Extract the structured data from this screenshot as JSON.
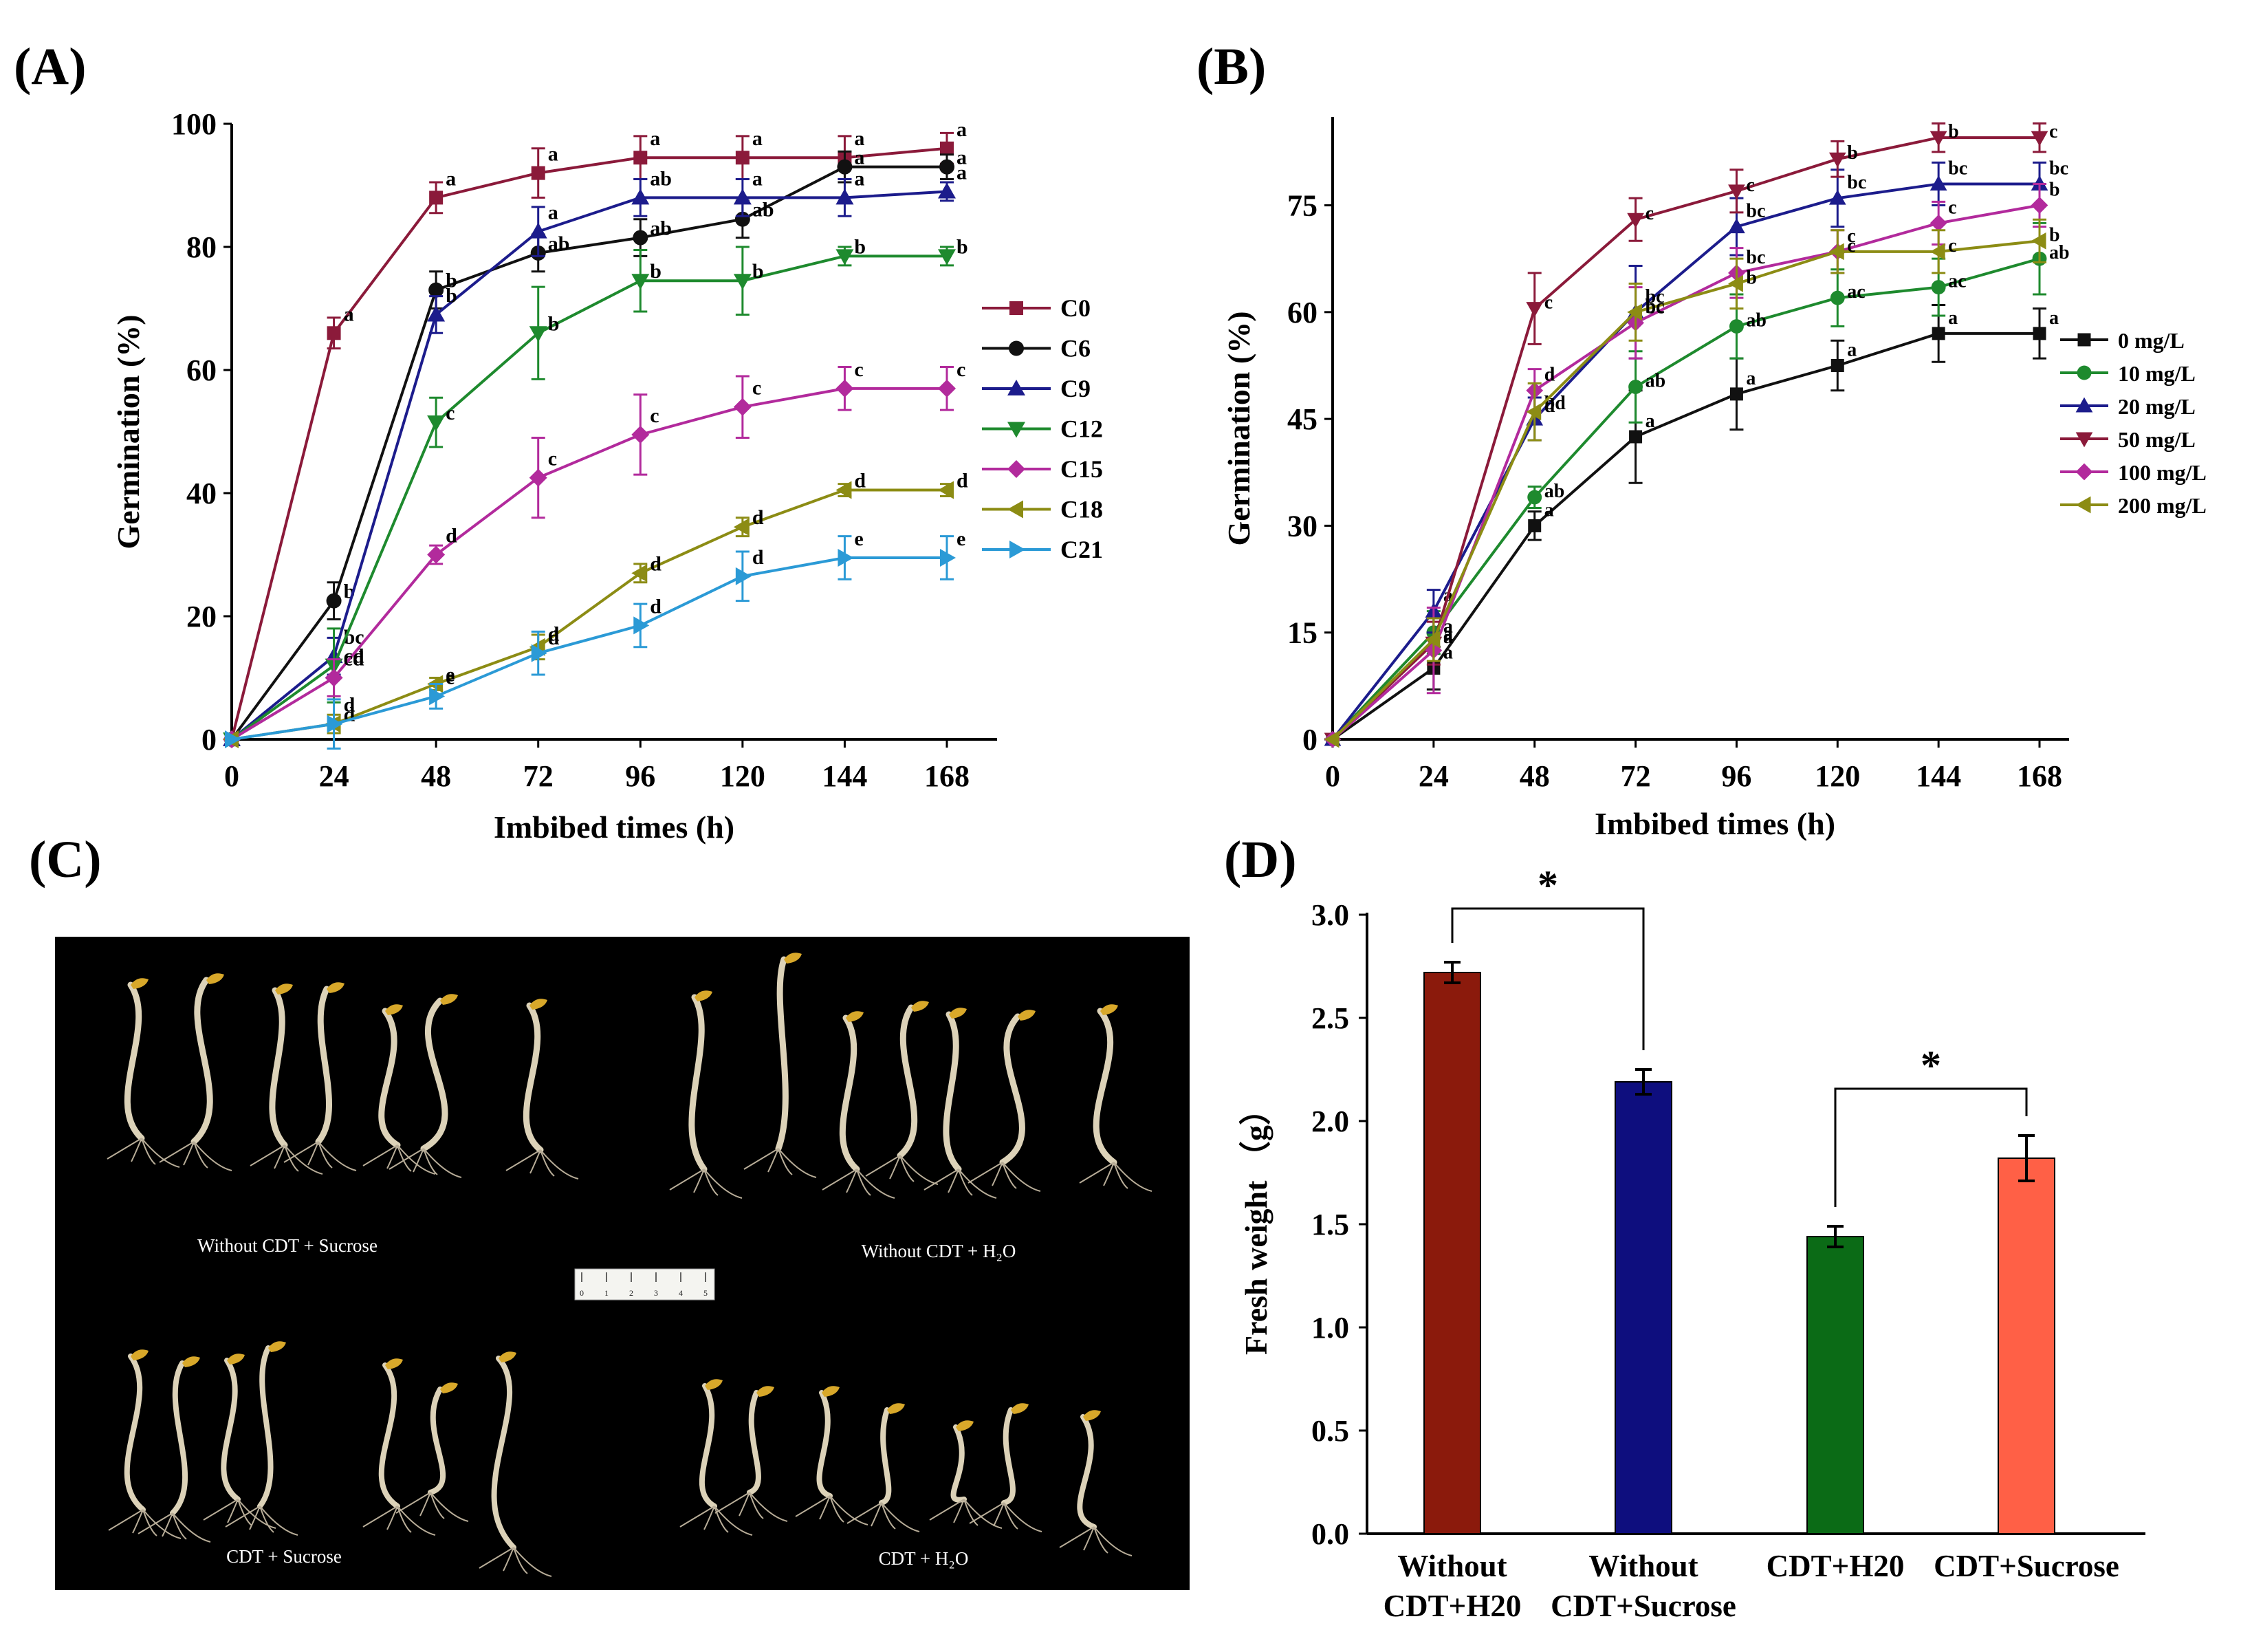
{
  "panel_labels": [
    "(A)",
    "(B)",
    "(C)",
    "(D)"
  ],
  "chart_data": [
    {
      "type": "line",
      "panel": "(A)",
      "xlabel": "Imbibed times (h)",
      "ylabel": "Germination (%)",
      "x": [
        0,
        24,
        48,
        72,
        96,
        120,
        144,
        168
      ],
      "xlim": [
        0,
        168
      ],
      "ylim": [
        0,
        100
      ],
      "xticks": [
        "0",
        "24",
        "48",
        "72",
        "96",
        "120",
        "144",
        "168"
      ],
      "yticks": [
        "0",
        "20",
        "40",
        "60",
        "80",
        "100"
      ],
      "series": [
        {
          "name": "C0",
          "color": "#8b1a3a",
          "marker": "square",
          "values": [
            0,
            66,
            88,
            92,
            94.5,
            94.5,
            94.5,
            96
          ],
          "err": [
            0,
            2.5,
            2.5,
            4,
            3.5,
            3.5,
            3.5,
            2.5
          ],
          "labels": [
            "",
            "a",
            "a",
            "a",
            "a",
            "a",
            "a",
            "a"
          ]
        },
        {
          "name": "C6",
          "color": "#111111",
          "marker": "circle",
          "values": [
            0,
            22.5,
            73,
            79,
            81.5,
            84.5,
            93,
            93
          ],
          "err": [
            0,
            3,
            3,
            3,
            3,
            3,
            2.5,
            2
          ],
          "labels": [
            "",
            "b",
            "b",
            "ab",
            "ab",
            "ab",
            "a",
            "a"
          ]
        },
        {
          "name": "C9",
          "color": "#1c1c8c",
          "marker": "triangle-up",
          "values": [
            0,
            13.5,
            69,
            82.5,
            88,
            88,
            88,
            89
          ],
          "err": [
            0,
            3,
            3,
            4,
            3,
            3,
            3,
            1.5
          ],
          "labels": [
            "",
            "bc",
            "b",
            "a",
            "ab",
            "a",
            "a",
            "a"
          ]
        },
        {
          "name": "C12",
          "color": "#1e8a2e",
          "marker": "triangle-down",
          "values": [
            0,
            12,
            51.5,
            66,
            74.5,
            74.5,
            78.5,
            78.5
          ],
          "err": [
            0,
            6,
            4,
            7.5,
            5,
            5.5,
            1.5,
            1.5
          ],
          "labels": [
            "",
            "cd",
            "c",
            "b",
            "b",
            "b",
            "b",
            "b"
          ]
        },
        {
          "name": "C15",
          "color": "#b22a9c",
          "marker": "diamond",
          "values": [
            0,
            10,
            30,
            42.5,
            49.5,
            54,
            57,
            57
          ],
          "err": [
            0,
            3,
            1.5,
            6.5,
            6.5,
            5,
            3.5,
            3.5
          ],
          "labels": [
            "",
            "cd",
            "d",
            "c",
            "c",
            "c",
            "c",
            "c"
          ]
        },
        {
          "name": "C18",
          "color": "#8c8c14",
          "marker": "triangle-left",
          "values": [
            0,
            2.5,
            9,
            15,
            27,
            34.5,
            40.5,
            40.5
          ],
          "err": [
            0,
            1.5,
            1,
            2,
            1.5,
            1.5,
            1,
            1
          ],
          "labels": [
            "",
            "d",
            "e",
            "d",
            "d",
            "d",
            "d",
            "d"
          ]
        },
        {
          "name": "C21",
          "color": "#2b9ad6",
          "marker": "triangle-right",
          "values": [
            0,
            2.5,
            7,
            14,
            18.5,
            26.5,
            29.5,
            29.5
          ],
          "err": [
            0,
            4,
            2,
            3.5,
            3.5,
            4,
            3.5,
            3.5
          ],
          "labels": [
            "",
            "d",
            "e",
            "d",
            "d",
            "d",
            "e",
            "e"
          ]
        }
      ]
    },
    {
      "type": "line",
      "panel": "(B)",
      "xlabel": "Imbibed times (h)",
      "ylabel": "Germination (%)",
      "x": [
        0,
        24,
        48,
        72,
        96,
        120,
        144,
        168
      ],
      "xlim": [
        0,
        168
      ],
      "ylim": [
        0,
        85
      ],
      "xticks": [
        "0",
        "24",
        "48",
        "72",
        "96",
        "120",
        "144",
        "168"
      ],
      "yticks": [
        "0",
        "15",
        "30",
        "45",
        "60",
        "75"
      ],
      "series": [
        {
          "name": "0 mg/L",
          "color": "#111111",
          "marker": "square",
          "values": [
            0,
            10,
            30,
            42.5,
            48.5,
            52.5,
            57,
            57
          ],
          "err": [
            0,
            3,
            2,
            6.5,
            5,
            3.5,
            4,
            3.5
          ],
          "labels": [
            "",
            "a",
            "a",
            "a",
            "a",
            "a",
            "a",
            "a"
          ]
        },
        {
          "name": "10 mg/L",
          "color": "#1e8a2e",
          "marker": "circle",
          "values": [
            0,
            15,
            34,
            49.5,
            58,
            62,
            63.5,
            67.5
          ],
          "err": [
            0,
            3,
            1.5,
            5,
            4.5,
            4,
            4,
            5
          ],
          "labels": [
            "",
            "a",
            "ab",
            "ab",
            "ab",
            "ac",
            "ac",
            "ab"
          ]
        },
        {
          "name": "20 mg/L",
          "color": "#1c1c8c",
          "marker": "triangle-up",
          "values": [
            0,
            18,
            45,
            60,
            72,
            76,
            78,
            78
          ],
          "err": [
            0,
            3,
            3,
            6.5,
            4,
            4,
            3,
            3
          ],
          "labels": [
            "",
            "a",
            "bd",
            "bc",
            "bc",
            "bc",
            "bc",
            "bc"
          ]
        },
        {
          "name": "50 mg/L",
          "color": "#8b1a3a",
          "marker": "triangle-down",
          "values": [
            0,
            13.5,
            60.5,
            73,
            77,
            81.5,
            84.5,
            84.5
          ],
          "err": [
            0,
            3,
            5,
            3,
            3,
            2.5,
            2,
            2
          ],
          "labels": [
            "",
            "a",
            "c",
            "c",
            "c",
            "b",
            "b",
            "c"
          ]
        },
        {
          "name": "100 mg/L",
          "color": "#b22a9c",
          "marker": "diamond",
          "values": [
            0,
            12.5,
            49,
            58.5,
            65.5,
            68.5,
            72.5,
            75
          ],
          "err": [
            0,
            6,
            3,
            5,
            3.5,
            3,
            3,
            3
          ],
          "labels": [
            "",
            "a",
            "d",
            "bc",
            "bc",
            "c",
            "c",
            "b"
          ]
        },
        {
          "name": "200 mg/L",
          "color": "#8c8c14",
          "marker": "triangle-left",
          "values": [
            0,
            14,
            46,
            60,
            64,
            68.5,
            68.5,
            70
          ],
          "err": [
            0,
            3,
            4,
            4,
            3.5,
            3,
            3,
            3
          ],
          "labels": [
            "",
            "a",
            "d",
            "bc",
            "b",
            "c",
            "c",
            "b"
          ]
        }
      ]
    },
    {
      "type": "bar",
      "panel": "(D)",
      "xlabel": "",
      "ylabel": "Fresh weight （g）",
      "ylim": [
        0,
        3
      ],
      "yticks": [
        "0.0",
        "0.5",
        "1.0",
        "1.5",
        "2.0",
        "2.5",
        "3.0"
      ],
      "categories": [
        [
          "Without",
          "CDT+H20"
        ],
        [
          "Without",
          "CDT+Sucrose"
        ],
        [
          "CDT+H20"
        ],
        [
          "CDT+Sucrose"
        ]
      ],
      "values": [
        2.72,
        2.19,
        1.44,
        1.82
      ],
      "err": [
        0.05,
        0.06,
        0.05,
        0.11
      ],
      "colors": [
        "#8b1a0c",
        "#0e0e7e",
        "#0b6b16",
        "#ff6046"
      ],
      "significance": [
        {
          "between": [
            0,
            1
          ],
          "label": "*"
        },
        {
          "between": [
            2,
            3
          ],
          "label": "*"
        }
      ]
    }
  ],
  "photo": {
    "captions": {
      "top_left": "Without CDT + Sucrose",
      "top_right": "Without CDT + H₂O",
      "bottom_left": "CDT + Sucrose",
      "bottom_right": "CDT + H₂O"
    },
    "ruler_numbers": [
      "0",
      "1",
      "2",
      "3",
      "4",
      "5"
    ]
  }
}
